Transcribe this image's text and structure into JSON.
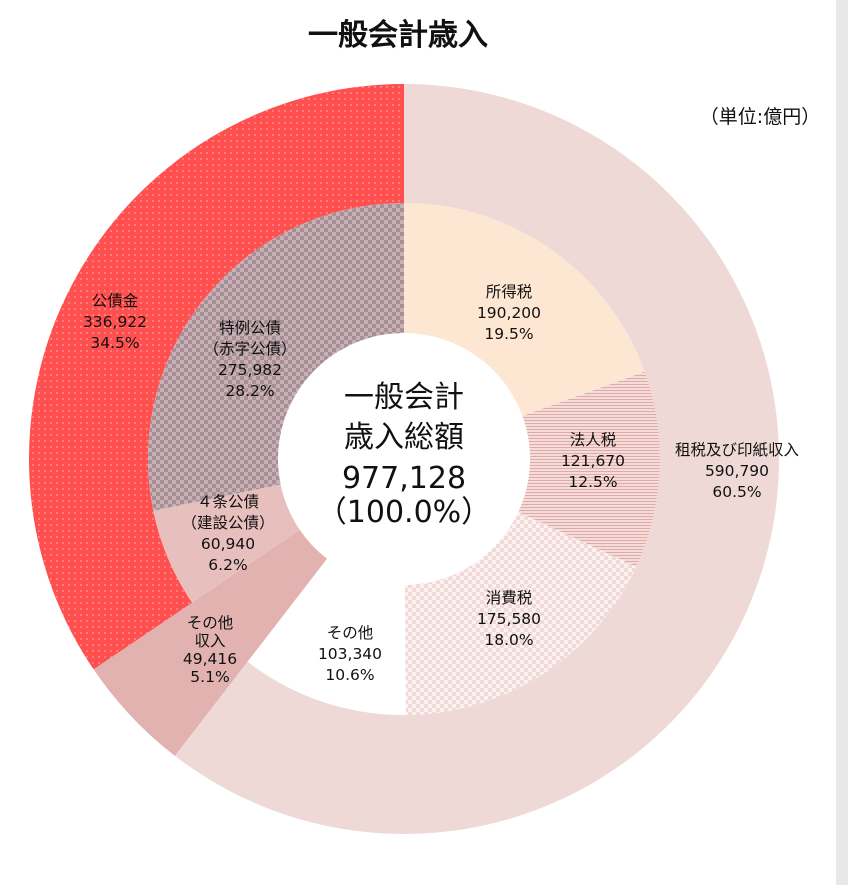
{
  "chart_data": {
    "type": "donut",
    "title": "一般会計歳入",
    "unit_note": "（単位:億円）",
    "total": {
      "lines": [
        "一般会計",
        "歳入総額",
        "977,128",
        "（100.0%）"
      ],
      "value": 977128,
      "percent": 100.0
    },
    "outer_ring": [
      {
        "name": "租税及び印紙収入",
        "value": 590790,
        "value_label": "590,790",
        "percent_label": "60.5%",
        "color": "#efd9d6"
      },
      {
        "name": "その他収入",
        "name_lines": [
          "その他",
          "収入"
        ],
        "value": 49416,
        "value_label": "49,416",
        "percent_label": "5.1%",
        "color": "#e2b2b0"
      },
      {
        "name": "公債金",
        "value": 336922,
        "value_label": "336,922",
        "percent_label": "34.5%",
        "color": "#ff4f4f"
      }
    ],
    "inner_ring": [
      {
        "name": "所得税",
        "value": 190200,
        "value_label": "190,200",
        "percent_label": "19.5%",
        "color": "#fde6d2"
      },
      {
        "name": "法人税",
        "value": 121670,
        "value_label": "121,670",
        "percent_label": "12.5%",
        "color": "#efcdca"
      },
      {
        "name": "消費税",
        "value": 175580,
        "value_label": "175,580",
        "percent_label": "18.0%",
        "color": "#f8eceb"
      },
      {
        "name": "その他",
        "value": 103340,
        "value_label": "103,340",
        "percent_label": "10.6%",
        "color": "#ffffff"
      },
      {
        "name": "その他収入",
        "value": 49416,
        "color": "#e2b2b0"
      },
      {
        "name": "4条公債（建設公債）",
        "name_lines": [
          "４条公債",
          "（建設公債）"
        ],
        "value": 60940,
        "value_label": "60,940",
        "percent_label": "6.2%",
        "color": "#e7c0be"
      },
      {
        "name": "特例公債（赤字公債）",
        "name_lines": [
          "特例公債",
          "（赤字公債）"
        ],
        "value": 275982,
        "value_label": "275,982",
        "percent_label": "28.2%",
        "color": "#b9a0a6"
      }
    ]
  }
}
